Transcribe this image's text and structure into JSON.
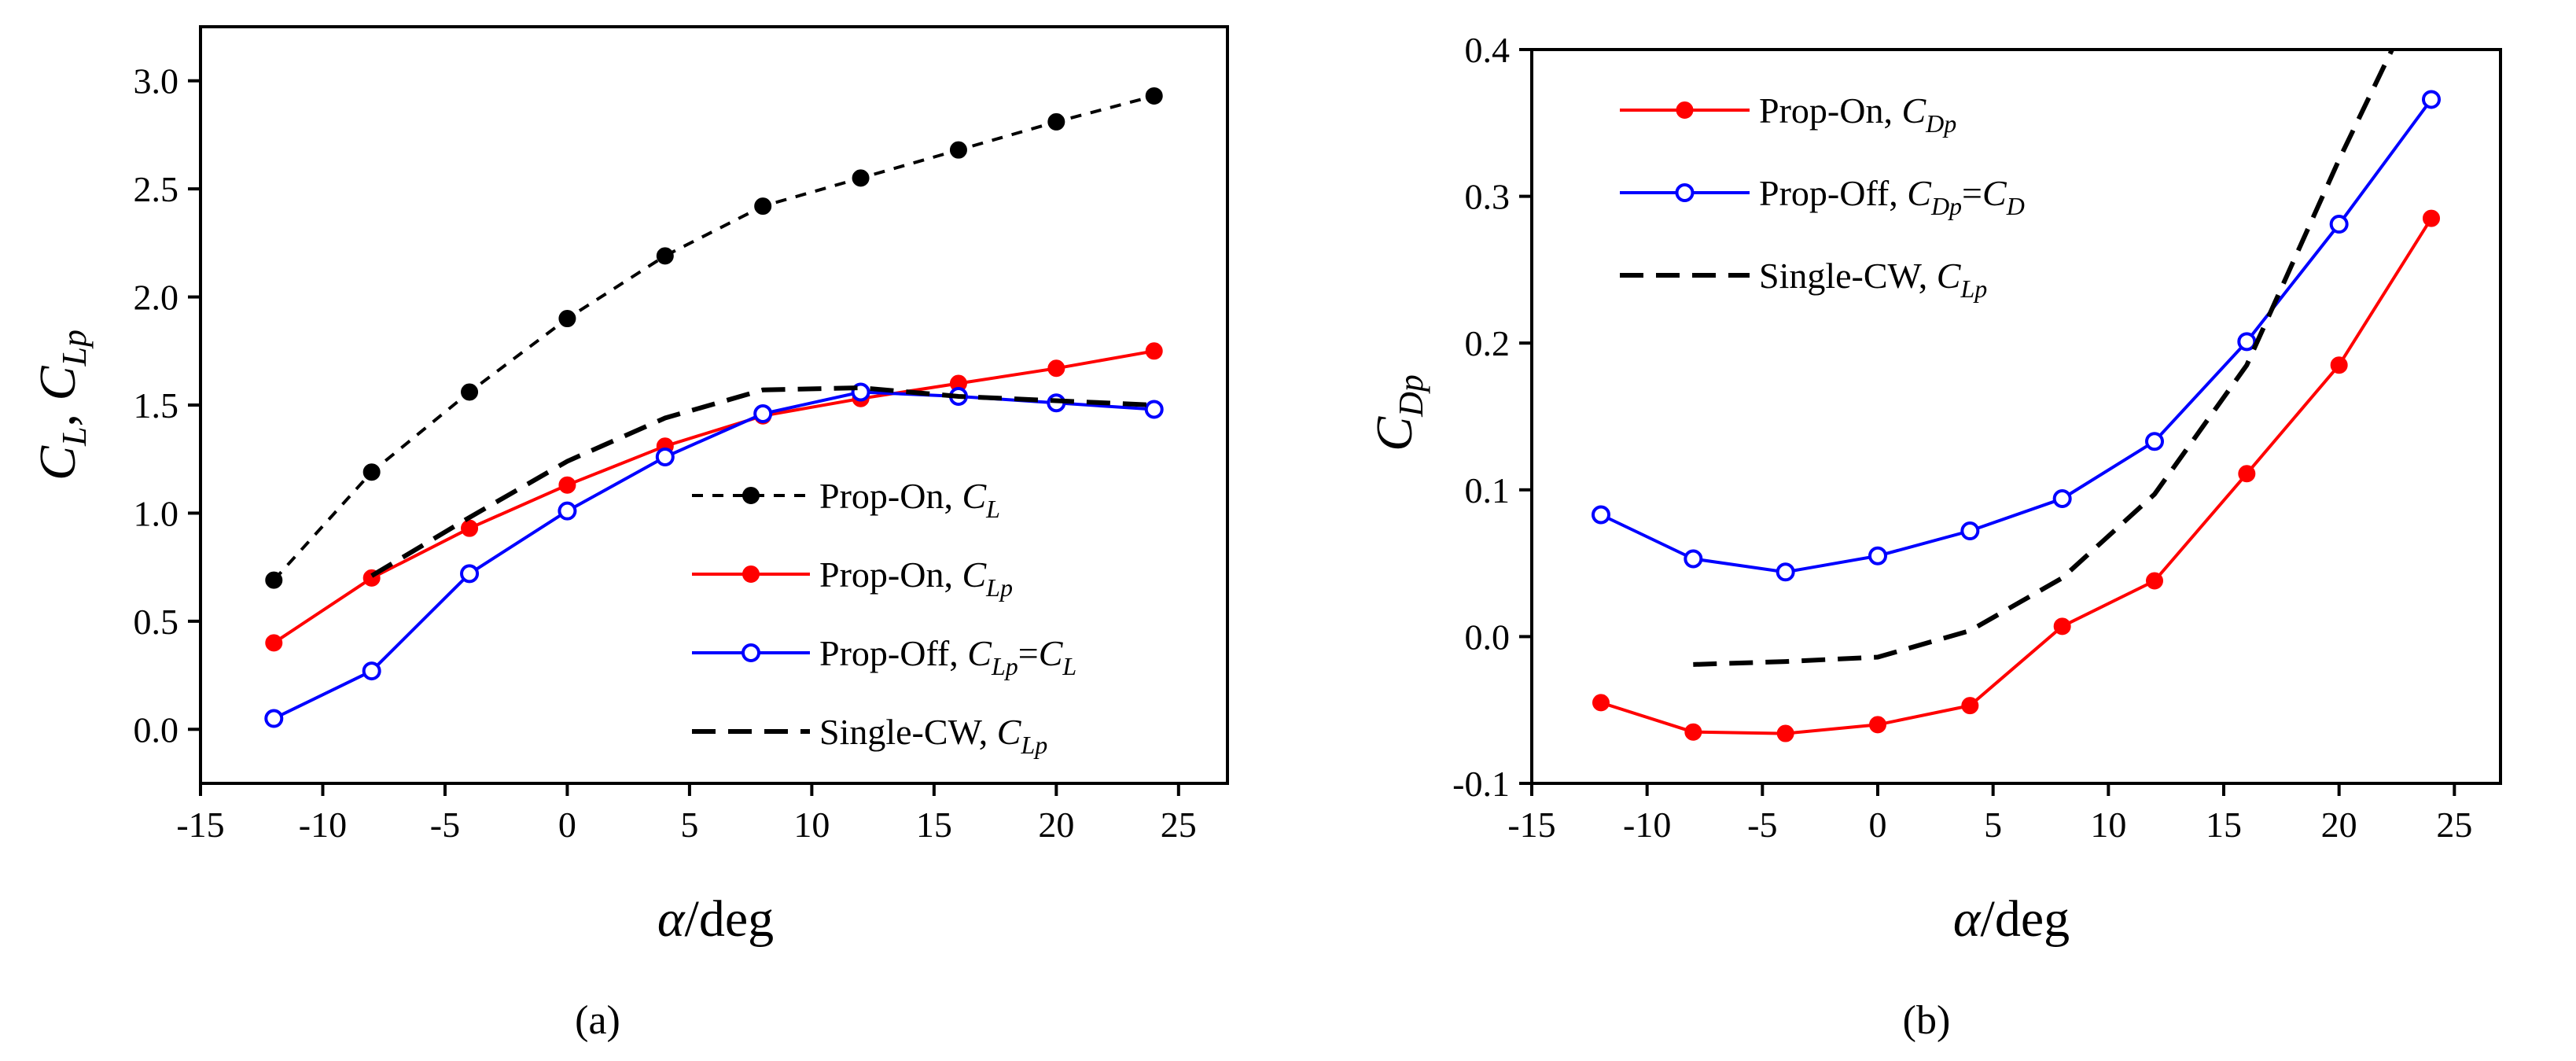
{
  "chart_data": [
    {
      "type": "line",
      "panel_label": "(a)",
      "xlabel": {
        "symbol": "α",
        "unit": "/deg"
      },
      "ylabel": {
        "parts": [
          {
            "base": "C",
            "sub": "L"
          },
          {
            "sep": ", "
          },
          {
            "base": "C",
            "sub": "Lp"
          }
        ]
      },
      "xlim": [
        -15,
        27
      ],
      "ylim": [
        -0.25,
        3.25
      ],
      "xticks": [
        -15,
        -10,
        -5,
        0,
        5,
        10,
        15,
        20,
        25
      ],
      "xtick_labels": [
        "-15",
        "-10",
        "-5",
        "0",
        "5",
        "10",
        "15",
        "20",
        "25"
      ],
      "yticks": [
        0.0,
        0.5,
        1.0,
        1.5,
        2.0,
        2.5,
        3.0
      ],
      "ytick_labels": [
        "0.0",
        "0.5",
        "1.0",
        "1.5",
        "2.0",
        "2.5",
        "3.0"
      ],
      "legend_position": "lower-right",
      "series": [
        {
          "name": "Prop-On, C_L",
          "label_prefix": "Prop-On, ",
          "label_base": "C",
          "label_sub": "L",
          "label_suffix": "",
          "color": "#000000",
          "line": "short-dash",
          "marker": "filled",
          "x": [
            -12,
            -8,
            -4,
            0,
            4,
            8,
            12,
            16,
            20,
            24
          ],
          "y": [
            0.69,
            1.19,
            1.56,
            1.9,
            2.19,
            2.42,
            2.55,
            2.68,
            2.81,
            2.93
          ]
        },
        {
          "name": "Prop-On, C_Lp",
          "label_prefix": "Prop-On, ",
          "label_base": "C",
          "label_sub": "Lp",
          "label_suffix": "",
          "color": "#ff0000",
          "line": "solid",
          "marker": "filled",
          "x": [
            -12,
            -8,
            -4,
            0,
            4,
            8,
            12,
            16,
            20,
            24
          ],
          "y": [
            0.4,
            0.7,
            0.93,
            1.13,
            1.31,
            1.45,
            1.53,
            1.6,
            1.67,
            1.75
          ]
        },
        {
          "name": "Prop-Off, C_Lp=C_L",
          "label_prefix": "Prop-Off, ",
          "label_base": "C",
          "label_sub": "Lp",
          "label_suffix": "=",
          "label_base2": "C",
          "label_sub2": "L",
          "color": "#0000ff",
          "line": "solid",
          "marker": "open",
          "x": [
            -12,
            -8,
            -4,
            0,
            4,
            8,
            12,
            16,
            20,
            24
          ],
          "y": [
            0.05,
            0.27,
            0.72,
            1.01,
            1.26,
            1.46,
            1.56,
            1.54,
            1.51,
            1.48
          ]
        },
        {
          "name": "Single-CW, C_Lp",
          "label_prefix": "Single-CW, ",
          "label_base": "C",
          "label_sub": "Lp",
          "label_suffix": "",
          "color": "#000000",
          "line": "long-dash",
          "marker": "none",
          "x": [
            -8,
            -4,
            0,
            4,
            8,
            12,
            16,
            20,
            24
          ],
          "y": [
            0.71,
            0.98,
            1.24,
            1.44,
            1.57,
            1.58,
            1.54,
            1.52,
            1.5
          ]
        }
      ]
    },
    {
      "type": "line",
      "panel_label": "(b)",
      "xlabel": {
        "symbol": "α",
        "unit": "/deg"
      },
      "ylabel": {
        "parts": [
          {
            "base": "C",
            "sub": "Dp"
          }
        ]
      },
      "xlim": [
        -15,
        27
      ],
      "ylim": [
        -0.1,
        0.4
      ],
      "xticks": [
        -15,
        -10,
        -5,
        0,
        5,
        10,
        15,
        20,
        25
      ],
      "xtick_labels": [
        "-15",
        "-10",
        "-5",
        "0",
        "5",
        "10",
        "15",
        "20",
        "25"
      ],
      "yticks": [
        -0.1,
        0.0,
        0.1,
        0.2,
        0.3,
        0.4
      ],
      "ytick_labels": [
        "-0.1",
        "0.0",
        "0.1",
        "0.2",
        "0.3",
        "0.4"
      ],
      "legend_position": "top-left",
      "series": [
        {
          "name": "Prop-On, C_Dp",
          "label_prefix": "Prop-On, ",
          "label_base": "C",
          "label_sub": "Dp",
          "label_suffix": "",
          "color": "#ff0000",
          "line": "solid",
          "marker": "filled",
          "x": [
            -12,
            -8,
            -4,
            0,
            4,
            8,
            12,
            16,
            20,
            24
          ],
          "y": [
            -0.045,
            -0.065,
            -0.066,
            -0.06,
            -0.047,
            0.007,
            0.038,
            0.111,
            0.185,
            0.285
          ]
        },
        {
          "name": "Prop-Off, C_Dp=C_D",
          "label_prefix": "Prop-Off, ",
          "label_base": "C",
          "label_sub": "Dp",
          "label_suffix": "=",
          "label_base2": "C",
          "label_sub2": "D",
          "color": "#0000ff",
          "line": "solid",
          "marker": "open",
          "x": [
            -12,
            -8,
            -4,
            0,
            4,
            8,
            12,
            16,
            20,
            24
          ],
          "y": [
            0.083,
            0.053,
            0.044,
            0.055,
            0.072,
            0.094,
            0.133,
            0.201,
            0.281,
            0.366
          ]
        },
        {
          "name": "Single-CW, C_Lp",
          "label_prefix": "Single-CW, ",
          "label_base": "C",
          "label_sub": "Lp",
          "label_suffix": "",
          "color": "#000000",
          "line": "long-dash",
          "marker": "none",
          "x": [
            -8,
            -4,
            0,
            4,
            8,
            12,
            16,
            20,
            22.3
          ],
          "y": [
            -0.019,
            -0.017,
            -0.014,
            0.004,
            0.04,
            0.097,
            0.185,
            0.325,
            0.4
          ]
        }
      ]
    }
  ]
}
